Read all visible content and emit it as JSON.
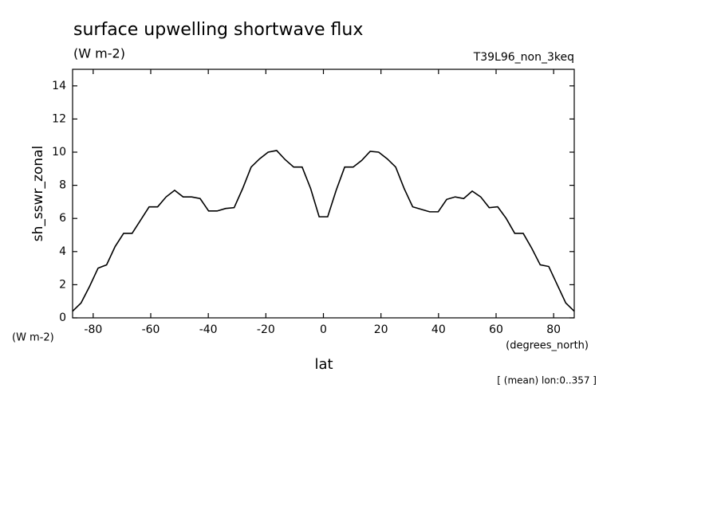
{
  "chart_data": {
    "type": "line",
    "title": "surface upwelling shortwave flux",
    "subtitle": "(W m-2)",
    "experiment": "T39L96_non_3keq",
    "y_label": "sh_sswr_zonal",
    "y_units": "(W m-2)",
    "x_units": "(degrees_north)",
    "x_label": "lat",
    "note": "[ (mean) lon:0..357 ]",
    "x": [
      -87.16,
      -84.21,
      -81.25,
      -78.3,
      -75.34,
      -72.39,
      -69.43,
      -66.48,
      -63.52,
      -60.57,
      -57.61,
      -54.66,
      -51.7,
      -48.75,
      -45.8,
      -42.84,
      -39.89,
      -36.93,
      -33.98,
      -31.02,
      -28.07,
      -25.11,
      -22.16,
      -19.2,
      -16.25,
      -13.3,
      -10.34,
      -7.39,
      -4.43,
      -1.48,
      1.48,
      4.43,
      7.39,
      10.34,
      13.3,
      16.25,
      19.2,
      22.16,
      25.11,
      28.07,
      31.02,
      33.98,
      36.93,
      39.89,
      42.84,
      45.8,
      48.75,
      51.7,
      54.66,
      57.61,
      60.57,
      63.52,
      66.48,
      69.43,
      72.39,
      75.34,
      78.3,
      81.25,
      84.21,
      87.16
    ],
    "series": [
      {
        "name": "sh_sswr_zonal",
        "color": "#000000",
        "values": [
          0.4,
          0.9,
          1.9,
          3.0,
          3.2,
          4.3,
          5.1,
          5.1,
          5.9,
          6.7,
          6.7,
          7.3,
          7.7,
          7.3,
          7.3,
          7.2,
          6.45,
          6.45,
          6.6,
          6.65,
          7.8,
          9.1,
          9.6,
          10.0,
          10.1,
          9.55,
          9.1,
          9.1,
          7.8,
          6.1,
          6.1,
          7.7,
          9.1,
          9.1,
          9.5,
          10.05,
          10.0,
          9.6,
          9.1,
          7.8,
          6.7,
          6.55,
          6.4,
          6.4,
          7.15,
          7.3,
          7.2,
          7.65,
          7.3,
          6.65,
          6.7,
          6.0,
          5.1,
          5.1,
          4.2,
          3.2,
          3.1,
          2.0,
          0.9,
          0.4
        ]
      }
    ],
    "xlim": [
      -87.16,
      87.16
    ],
    "xticks": [
      -80,
      -60,
      -40,
      -20,
      0,
      20,
      40,
      60,
      80
    ],
    "ylim": [
      0,
      15
    ],
    "yticks": [
      0,
      2,
      4,
      6,
      8,
      10,
      12,
      14
    ]
  }
}
